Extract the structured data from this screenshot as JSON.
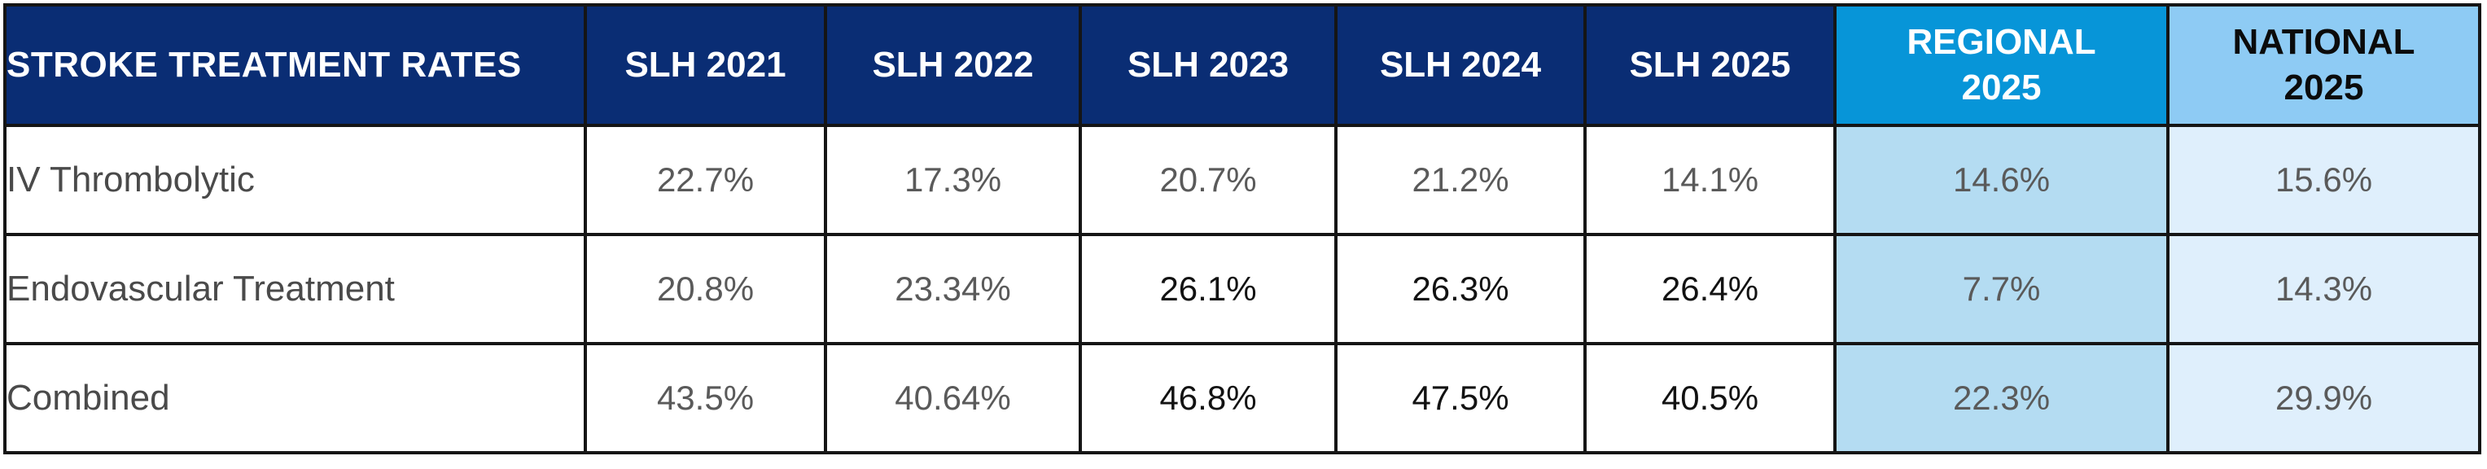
{
  "table": {
    "header": {
      "label": "STROKE TREATMENT RATES",
      "slh": [
        "SLH 2021",
        "SLH 2022",
        "SLH 2023",
        "SLH 2024",
        "SLH 2025"
      ],
      "regional": {
        "line1": "REGIONAL",
        "line2": "2025"
      },
      "national": {
        "line1": "NATIONAL",
        "line2": "2025"
      }
    },
    "rows": [
      {
        "label": "IV Thrombolytic",
        "values": [
          "22.7%",
          "17.3%",
          "20.7%",
          "21.2%",
          "14.1%"
        ],
        "regional": "14.6%",
        "national": "15.6%"
      },
      {
        "label": "Endovascular Treatment",
        "values": [
          "20.8%",
          "23.34%",
          "26.1%",
          "26.3%",
          "26.4%"
        ],
        "regional": "7.7%",
        "national": "14.3%"
      },
      {
        "label": "Combined",
        "values": [
          "43.5%",
          "40.64%",
          "46.8%",
          "47.5%",
          "40.5%"
        ],
        "regional": "22.3%",
        "national": "29.9%"
      }
    ]
  },
  "colors": {
    "header_navy": "#0a2d74",
    "header_regional": "#0795d8",
    "header_national": "#8ecbf4",
    "cell_regional": "#b4dcf2",
    "cell_national": "#dfeffc",
    "border": "#151515"
  }
}
